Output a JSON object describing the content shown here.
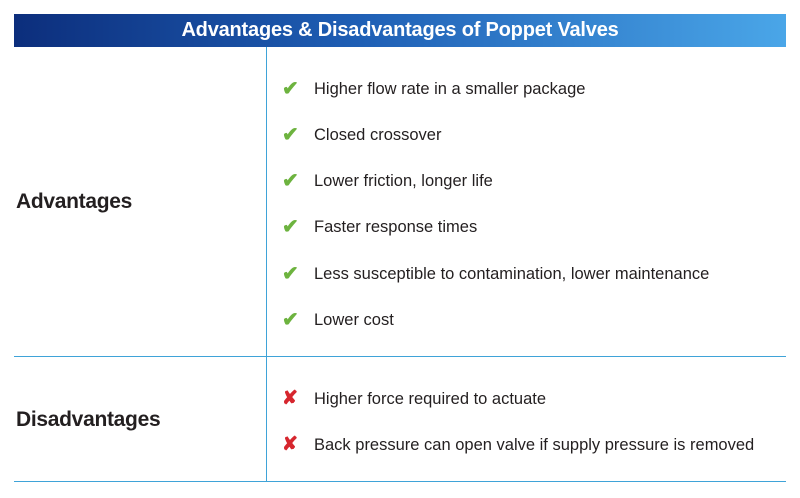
{
  "table": {
    "title": "Advantages & Disadvantages of Poppet Valves",
    "advantages": {
      "label": "Advantages",
      "items": [
        "Higher flow rate in a smaller package",
        "Closed crossover",
        "Lower friction, longer life",
        "Faster response times",
        "Less susceptible to contamination, lower maintenance",
        "Lower cost"
      ]
    },
    "disadvantages": {
      "label": "Disadvantages",
      "items": [
        "Higher force required to actuate",
        "Back pressure can open valve if supply pressure is removed"
      ]
    }
  },
  "icons": {
    "advantage": "check-icon",
    "disadvantage": "cross-icon"
  },
  "colors": {
    "header_start": "#0c2e7c",
    "header_end": "#4aa6e8",
    "rule": "#3fa3d8",
    "check": "#6db33f",
    "cross": "#d6262e"
  }
}
